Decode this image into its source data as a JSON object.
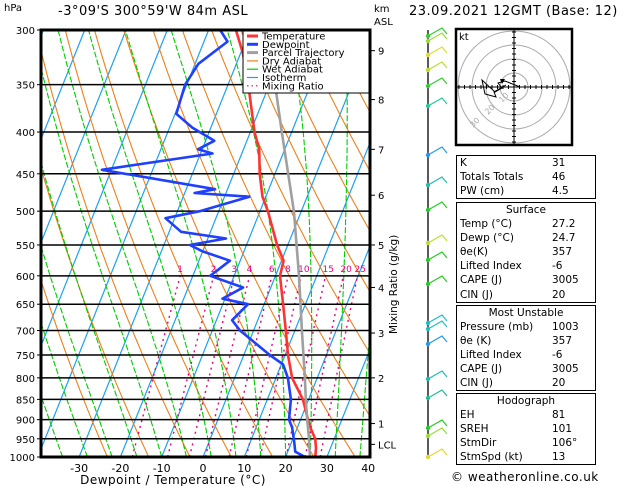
{
  "header": {
    "location": "-3°09'S 300°59'W 84m ASL",
    "datetime": "23.09.2021 12GMT (Base: 12)",
    "pressure_unit": "hPa",
    "height_unit_line1": "km",
    "height_unit_line2": "ASL"
  },
  "chart_data": {
    "type": "skew-t",
    "xlabel": "Dewpoint / Temperature (°C)",
    "ylabel_left": "hPa",
    "ylabel_right": "Mixing Ratio (g/kg)",
    "x_ticks": [
      -30,
      -20,
      -10,
      0,
      10,
      20,
      30,
      40
    ],
    "xlim": [
      -39,
      40
    ],
    "pressure_ticks": [
      300,
      350,
      400,
      450,
      500,
      550,
      600,
      650,
      700,
      750,
      800,
      850,
      900,
      950,
      1000
    ],
    "ylim_hpa": [
      1000,
      300
    ],
    "height_ticks_km": [
      {
        "label": "1",
        "p": 910
      },
      {
        "label": "2",
        "p": 800
      },
      {
        "label": "3",
        "p": 705
      },
      {
        "label": "4",
        "p": 620
      },
      {
        "label": "5",
        "p": 550
      },
      {
        "label": "6",
        "p": 478
      },
      {
        "label": "7",
        "p": 420
      },
      {
        "label": "8",
        "p": 365
      },
      {
        "label": "9",
        "p": 318
      },
      {
        "label": "LCL",
        "p": 965
      }
    ],
    "mixing_ratio_labels": [
      "1",
      "2",
      "3",
      "4",
      "6",
      "8",
      "10",
      "15",
      "20",
      "25"
    ],
    "mixing_ratio_values": [
      1,
      2,
      3,
      4,
      6,
      8,
      10,
      15,
      20,
      25
    ],
    "legend": [
      {
        "label": "Temperature",
        "color": "#ff3333",
        "style": "thick"
      },
      {
        "label": "Dewpoint",
        "color": "#2040ff",
        "style": "thick"
      },
      {
        "label": "Parcel Trajectory",
        "color": "#a0a0a0",
        "style": "thick"
      },
      {
        "label": "Dry Adiabat",
        "color": "#ee7f1a",
        "style": "thin"
      },
      {
        "label": "Wet Adiabat",
        "color": "#00cc00",
        "style": "thin"
      },
      {
        "label": "Isotherm",
        "color": "#1fa0ee",
        "style": "thin"
      },
      {
        "label": "Mixing Ratio",
        "color": "#e6007e",
        "style": "dotted"
      }
    ],
    "legend_position": "top-right",
    "series": [
      {
        "name": "Temperature",
        "points": [
          [
            1000,
            27.2
          ],
          [
            975,
            26.5
          ],
          [
            950,
            25.4
          ],
          [
            925,
            23.5
          ],
          [
            900,
            21.8
          ],
          [
            850,
            18.6
          ],
          [
            800,
            13.9
          ],
          [
            750,
            10.7
          ],
          [
            700,
            7.8
          ],
          [
            650,
            4.6
          ],
          [
            600,
            1.1
          ],
          [
            575,
            0.5
          ],
          [
            550,
            -2.6
          ],
          [
            500,
            -8.1
          ],
          [
            480,
            -10.8
          ],
          [
            450,
            -13.7
          ],
          [
            420,
            -16.2
          ],
          [
            400,
            -19.0
          ],
          [
            350,
            -25.1
          ],
          [
            320,
            -29.5
          ],
          [
            300,
            -33.4
          ]
        ]
      },
      {
        "name": "Dewpoint",
        "points": [
          [
            1000,
            24.7
          ],
          [
            985,
            21.8
          ],
          [
            960,
            20.7
          ],
          [
            920,
            18.7
          ],
          [
            900,
            17.2
          ],
          [
            850,
            15.7
          ],
          [
            800,
            12.9
          ],
          [
            770,
            10.4
          ],
          [
            750,
            6.3
          ],
          [
            700,
            -3.3
          ],
          [
            680,
            -6.2
          ],
          [
            650,
            -3.9
          ],
          [
            640,
            -10.6
          ],
          [
            620,
            -6.7
          ],
          [
            600,
            -15.8
          ],
          [
            575,
            -12.5
          ],
          [
            560,
            -20.0
          ],
          [
            550,
            -23.7
          ],
          [
            540,
            -15.6
          ],
          [
            530,
            -27.1
          ],
          [
            510,
            -32.2
          ],
          [
            500,
            -24.6
          ],
          [
            480,
            -14.0
          ],
          [
            475,
            -27.6
          ],
          [
            470,
            -23.0
          ],
          [
            445,
            -52.3
          ],
          [
            425,
            -27.1
          ],
          [
            420,
            -31.0
          ],
          [
            410,
            -27.9
          ],
          [
            395,
            -34.5
          ],
          [
            380,
            -39.7
          ],
          [
            350,
            -40.4
          ],
          [
            330,
            -39.2
          ],
          [
            310,
            -34.3
          ],
          [
            300,
            -37.2
          ]
        ]
      },
      {
        "name": "Parcel Trajectory",
        "points": [
          [
            1000,
            25.9
          ],
          [
            965,
            24.5
          ],
          [
            950,
            23.9
          ],
          [
            900,
            21.6
          ],
          [
            850,
            19.3
          ],
          [
            800,
            17.0
          ],
          [
            700,
            11.7
          ],
          [
            600,
            5.7
          ],
          [
            500,
            -1.8
          ],
          [
            400,
            -12.4
          ],
          [
            350,
            -18.6
          ],
          [
            340,
            -20.0
          ]
        ]
      }
    ],
    "hodograph": {
      "unit_label": "kt",
      "ring_labels": [
        "10",
        "20",
        "30"
      ]
    }
  },
  "indices": {
    "general": [
      {
        "label": "K",
        "value": "31"
      },
      {
        "label": "Totals Totals",
        "value": "46"
      },
      {
        "label": "PW (cm)",
        "value": "4.5"
      }
    ],
    "surface": {
      "title": "Surface",
      "rows": [
        {
          "label": "Temp (°C)",
          "value": "27.2"
        },
        {
          "label": "Dewp (°C)",
          "value": "24.7"
        },
        {
          "label": "θe(K)",
          "value": "357"
        },
        {
          "label": "Lifted Index",
          "value": "-6"
        },
        {
          "label": "CAPE (J)",
          "value": "3005"
        },
        {
          "label": "CIN (J)",
          "value": "20"
        }
      ]
    },
    "most_unstable": {
      "title": "Most Unstable",
      "rows": [
        {
          "label": "Pressure (mb)",
          "value": "1003"
        },
        {
          "label": "θe (K)",
          "value": "357"
        },
        {
          "label": "Lifted Index",
          "value": "-6"
        },
        {
          "label": "CAPE (J)",
          "value": "3005"
        },
        {
          "label": "CIN (J)",
          "value": "20"
        }
      ]
    },
    "hodograph": {
      "title": "Hodograph",
      "rows": [
        {
          "label": "EH",
          "value": "81"
        },
        {
          "label": "SREH",
          "value": "101"
        },
        {
          "label": "StmDir",
          "value": "106°"
        },
        {
          "label": "StmSpd (kt)",
          "value": "13"
        }
      ]
    }
  },
  "footer": {
    "copyright": "© weatheronline.co.uk"
  }
}
